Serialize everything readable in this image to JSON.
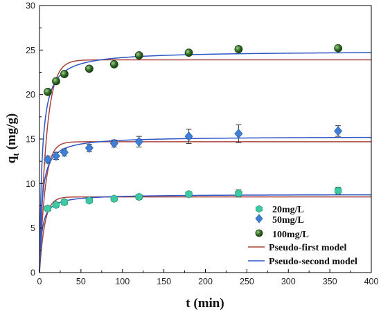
{
  "chart_data": {
    "type": "scatter",
    "title": "",
    "xlabel": "t (min)",
    "ylabel_main": "q",
    "ylabel_sub": "t",
    "ylabel_rest": " (mg/g)",
    "xlim": [
      0,
      400
    ],
    "ylim": [
      0,
      30
    ],
    "xticks": [
      "0",
      "50",
      "100",
      "150",
      "200",
      "250",
      "300",
      "350",
      "400"
    ],
    "yticks": [
      "0",
      "5",
      "10",
      "15",
      "20",
      "25",
      "30"
    ],
    "grid": false,
    "legend_position": "bottom-right",
    "series": [
      {
        "name": "20mg/L",
        "marker": "hexagon",
        "color": "#3cc9a3",
        "x": [
          10,
          20,
          30,
          60,
          90,
          120,
          180,
          240,
          360
        ],
        "y": [
          7.2,
          7.6,
          7.9,
          8.1,
          8.3,
          8.5,
          8.8,
          8.9,
          9.2
        ],
        "err": [
          0.3,
          0.3,
          0.3,
          0.3,
          0.3,
          0.3,
          0.3,
          0.4,
          0.4
        ]
      },
      {
        "name": "50mg/L",
        "marker": "diamond",
        "color": "#3f7fd6",
        "x": [
          10,
          20,
          30,
          60,
          90,
          120,
          180,
          240,
          360
        ],
        "y": [
          12.7,
          13.1,
          13.5,
          14.0,
          14.5,
          14.7,
          15.3,
          15.6,
          15.9
        ],
        "err": [
          0.4,
          0.4,
          0.4,
          0.4,
          0.4,
          0.6,
          0.8,
          1.0,
          0.6
        ]
      },
      {
        "name": "100mg/L",
        "marker": "sphere",
        "color": "#2f6a24",
        "x": [
          10,
          20,
          30,
          60,
          90,
          120,
          180,
          240,
          360
        ],
        "y": [
          20.3,
          21.5,
          22.3,
          22.9,
          23.4,
          24.4,
          24.7,
          25.1,
          25.2
        ],
        "err": [
          0,
          0,
          0,
          0,
          0,
          0,
          0,
          0,
          0
        ]
      }
    ],
    "models": [
      {
        "name": "Pseudo-first model",
        "color": "#a9453d",
        "type": "pfo",
        "curves": [
          {
            "qe": 8.5,
            "k": 0.16
          },
          {
            "qe": 14.7,
            "k": 0.15
          },
          {
            "qe": 23.9,
            "k": 0.12
          }
        ]
      },
      {
        "name": "Pseudo-second model",
        "color": "#2b55c4",
        "type": "pso",
        "curves": [
          {
            "qe": 8.8,
            "k": 0.04
          },
          {
            "qe": 15.3,
            "k": 0.022
          },
          {
            "qe": 24.9,
            "k": 0.013
          }
        ]
      }
    ]
  }
}
